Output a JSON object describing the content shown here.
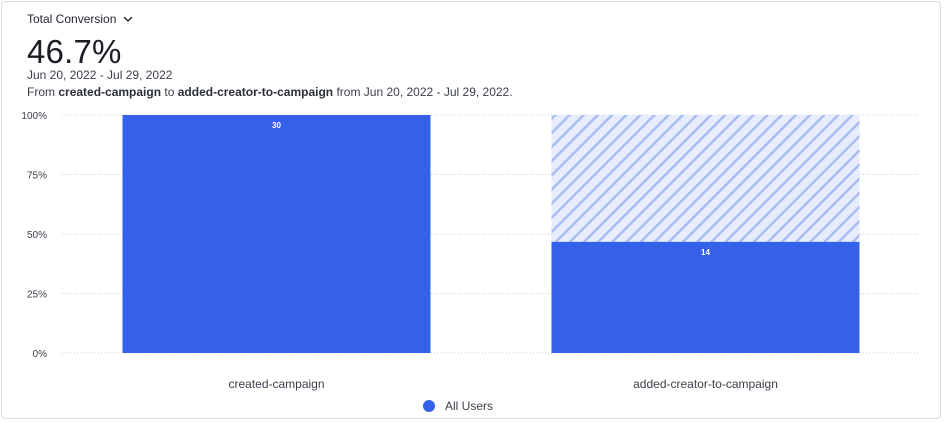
{
  "header": {
    "metric_label": "Total Conversion",
    "value": "46.7%",
    "date_range": "Jun 20, 2022 - Jul 29, 2022",
    "description_prefix": "From",
    "from_step": "created-campaign",
    "description_mid": "to",
    "to_step": "added-creator-to-campaign",
    "description_suffix": "from Jun 20, 2022 - Jul 29, 2022."
  },
  "colors": {
    "bar": "#3461e8",
    "dropoff_stripe": "#a9bdf2",
    "grid": "#c9ccd3",
    "axis_text": "#3a3f4a"
  },
  "legend": {
    "label": "All Users"
  },
  "chart_data": {
    "type": "bar",
    "categories": [
      "created-campaign",
      "added-creator-to-campaign"
    ],
    "series": [
      {
        "name": "All Users",
        "values": [
          100,
          46.7
        ],
        "counts": [
          30,
          14
        ]
      }
    ],
    "dropoff_shown_hatched": true,
    "y_ticks": [
      "0%",
      "25%",
      "50%",
      "75%",
      "100%"
    ],
    "ylim": [
      0,
      100
    ],
    "grid": true,
    "legend_position": "bottom"
  }
}
